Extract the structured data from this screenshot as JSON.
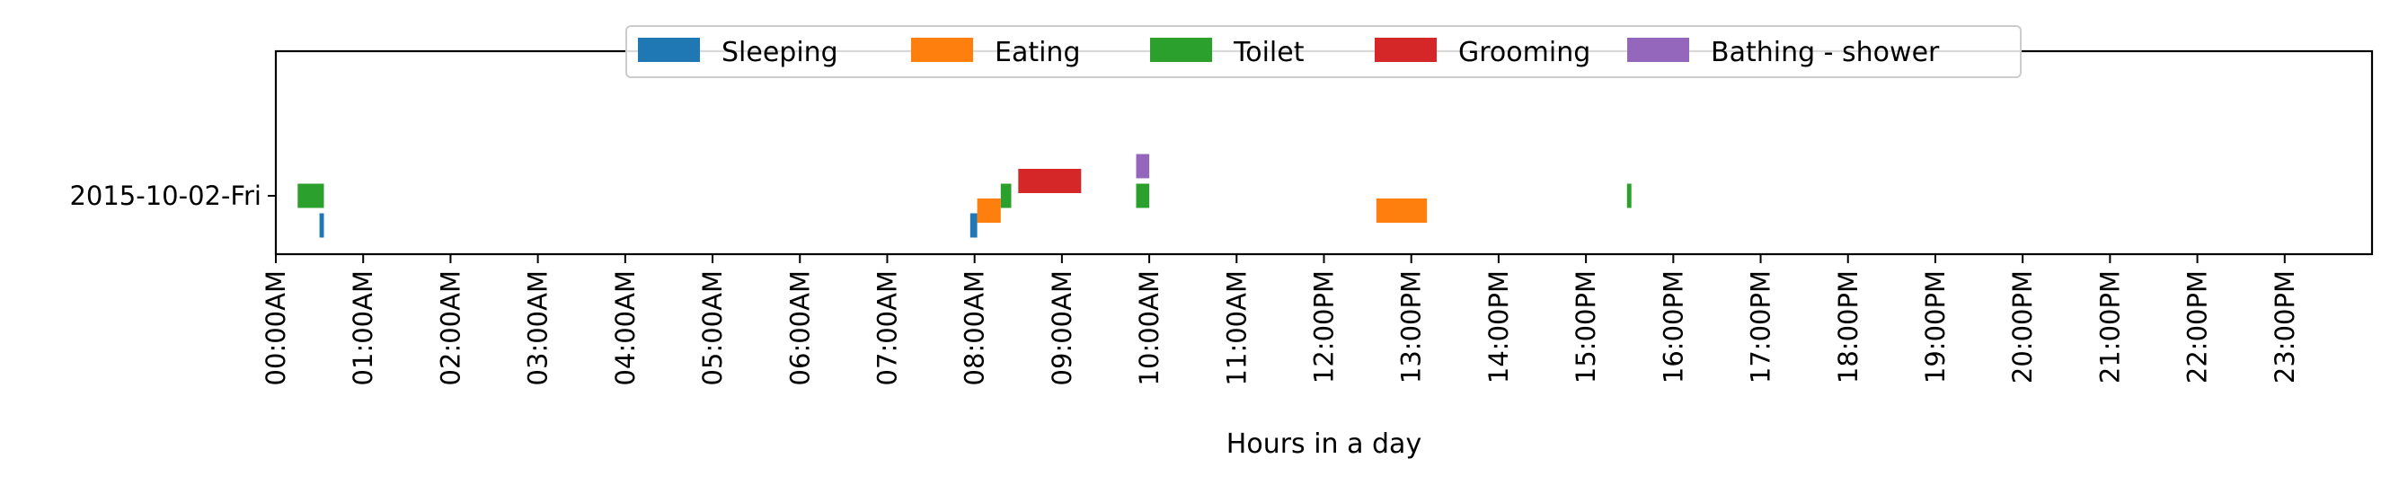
{
  "chart_data": {
    "type": "timeline",
    "xlabel": "Hours in a day",
    "xlim": [
      0,
      24
    ],
    "x_ticks": [
      {
        "value": 0,
        "label": "00:00AM"
      },
      {
        "value": 1,
        "label": "01:00AM"
      },
      {
        "value": 2,
        "label": "02:00AM"
      },
      {
        "value": 3,
        "label": "03:00AM"
      },
      {
        "value": 4,
        "label": "04:00AM"
      },
      {
        "value": 5,
        "label": "05:00AM"
      },
      {
        "value": 6,
        "label": "06:00AM"
      },
      {
        "value": 7,
        "label": "07:00AM"
      },
      {
        "value": 8,
        "label": "08:00AM"
      },
      {
        "value": 9,
        "label": "09:00AM"
      },
      {
        "value": 10,
        "label": "10:00AM"
      },
      {
        "value": 11,
        "label": "11:00AM"
      },
      {
        "value": 12,
        "label": "12:00PM"
      },
      {
        "value": 13,
        "label": "13:00PM"
      },
      {
        "value": 14,
        "label": "14:00PM"
      },
      {
        "value": 15,
        "label": "15:00PM"
      },
      {
        "value": 16,
        "label": "16:00PM"
      },
      {
        "value": 17,
        "label": "17:00PM"
      },
      {
        "value": 18,
        "label": "18:00PM"
      },
      {
        "value": 19,
        "label": "19:00PM"
      },
      {
        "value": 20,
        "label": "20:00PM"
      },
      {
        "value": 21,
        "label": "21:00PM"
      },
      {
        "value": 22,
        "label": "22:00PM"
      },
      {
        "value": 23,
        "label": "23:00PM"
      }
    ],
    "y_categories": [
      "2015-10-02-Fri"
    ],
    "legend_position": "top-center",
    "grid": false,
    "series": [
      {
        "name": "Sleeping",
        "color": "#1f77b4",
        "lane": -1,
        "intervals": [
          [
            0.5,
            0.55
          ],
          [
            7.95,
            8.03
          ]
        ]
      },
      {
        "name": "Eating",
        "color": "#ff7f0e",
        "lane": -0.5,
        "intervals": [
          [
            8.03,
            8.3
          ],
          [
            12.6,
            13.18
          ]
        ]
      },
      {
        "name": "Toilet",
        "color": "#2ca02c",
        "lane": 0,
        "intervals": [
          [
            0.25,
            0.55
          ],
          [
            8.3,
            8.42
          ],
          [
            9.85,
            10.0
          ],
          [
            15.47,
            15.52
          ]
        ]
      },
      {
        "name": "Grooming",
        "color": "#d62728",
        "lane": 0.5,
        "intervals": [
          [
            8.5,
            9.22
          ]
        ]
      },
      {
        "name": "Bathing - shower",
        "color": "#9467bd",
        "lane": 1,
        "intervals": [
          [
            9.85,
            10.0
          ]
        ]
      }
    ]
  }
}
